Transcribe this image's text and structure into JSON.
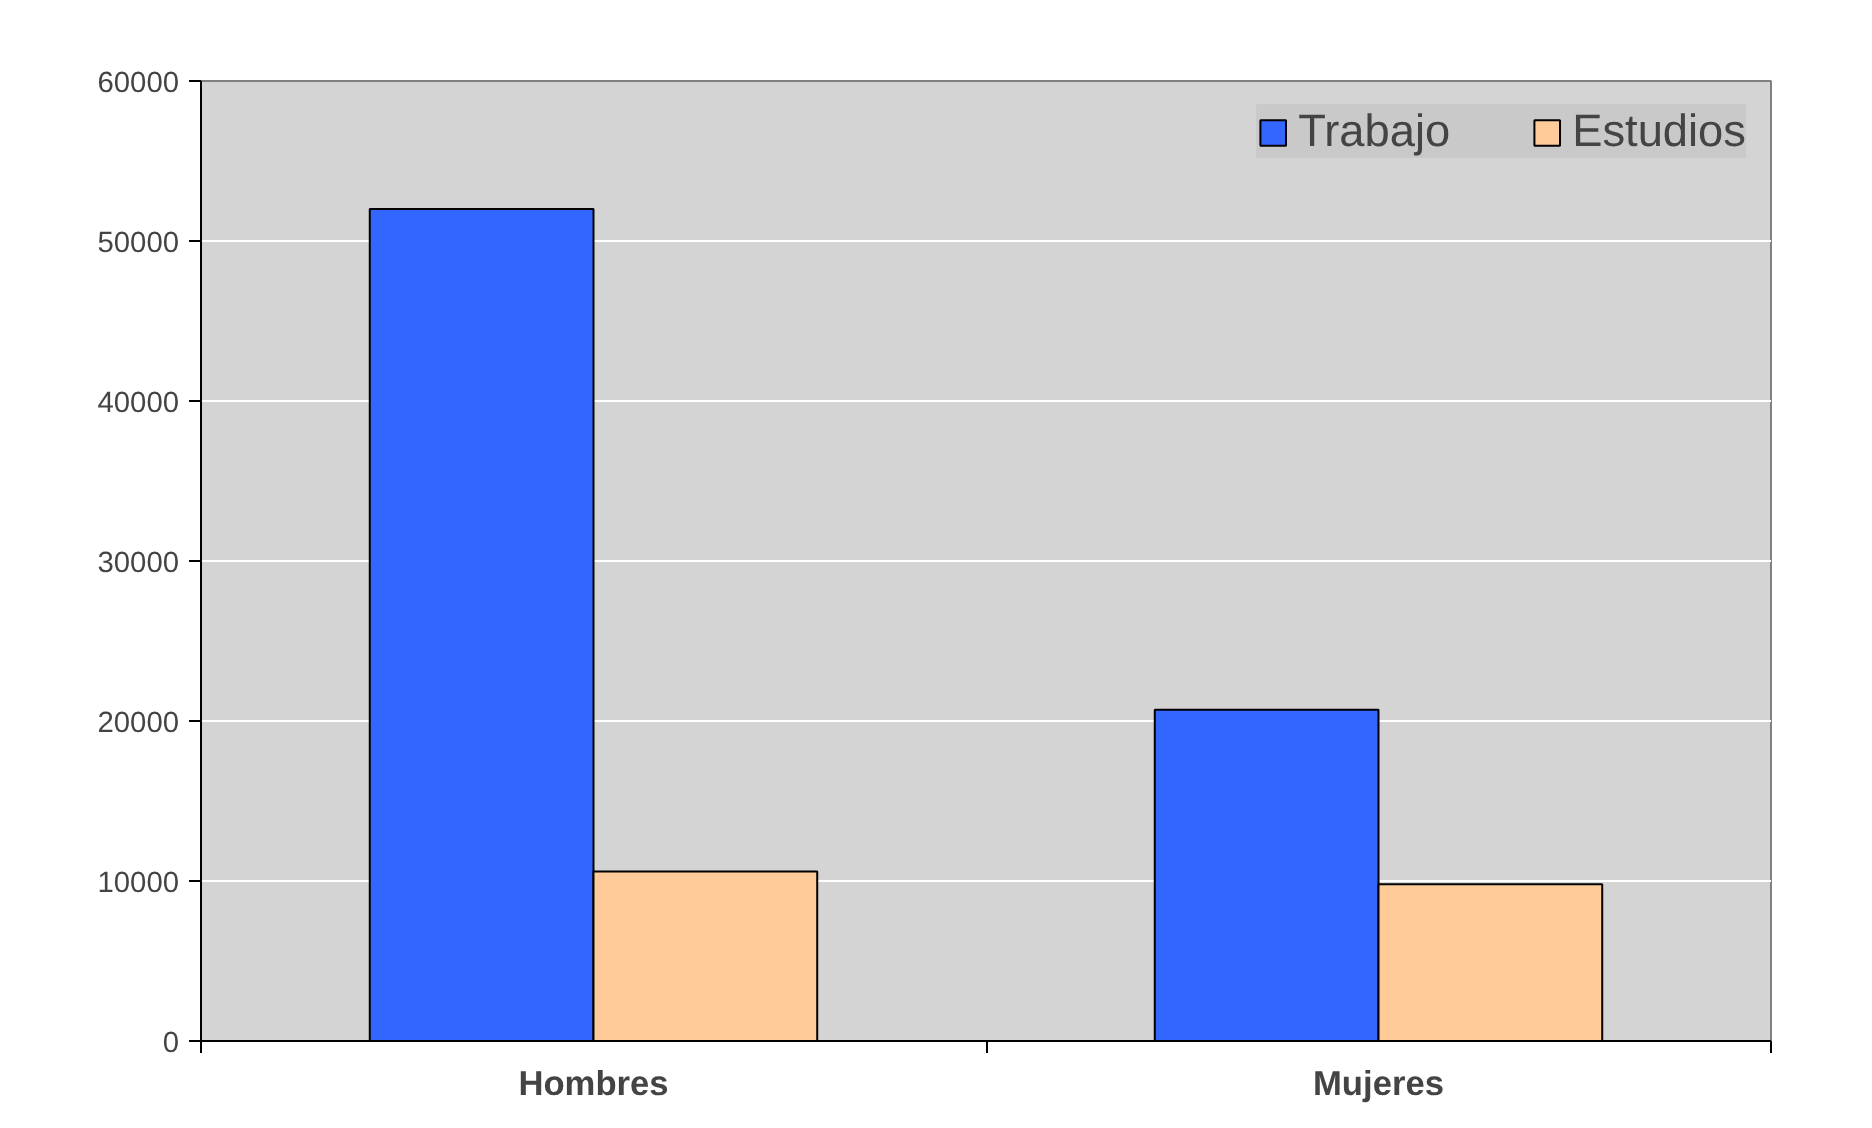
{
  "chart_data": {
    "type": "bar",
    "categories": [
      "Hombres",
      "Mujeres"
    ],
    "series": [
      {
        "name": "Trabajo",
        "color": "#3366ff",
        "values": [
          52000,
          20700
        ]
      },
      {
        "name": "Estudios",
        "color": "#ffcc99",
        "values": [
          10600,
          9800
        ]
      }
    ],
    "ylim": [
      0,
      60000
    ],
    "yticks": [
      0,
      10000,
      20000,
      30000,
      40000,
      50000,
      60000
    ],
    "grid": "y",
    "legend": "top right"
  }
}
